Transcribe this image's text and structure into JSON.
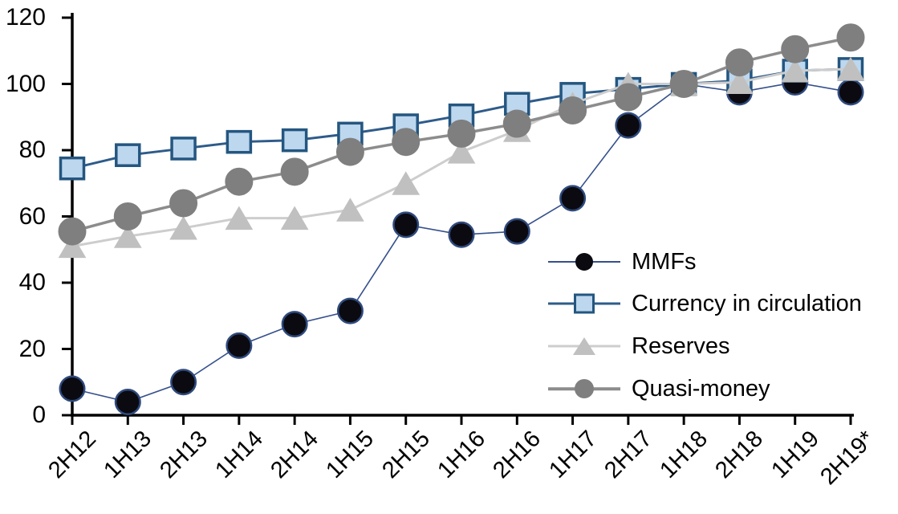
{
  "chart_data": {
    "type": "line",
    "title": "",
    "xlabel": "",
    "ylabel": "",
    "categories": [
      "2H12",
      "1H13",
      "2H13",
      "1H14",
      "2H14",
      "1H15",
      "2H15",
      "1H16",
      "2H16",
      "1H17",
      "2H17",
      "1H18",
      "2H18",
      "1H19",
      "2H19*"
    ],
    "series": [
      {
        "name": "MMFs",
        "marker": "circle",
        "marker_size": 33,
        "fill": "#0A0A10",
        "stroke": "#2F4A7D",
        "stroke_width": 2.5,
        "line_color": "#35508C",
        "line_width": 1.6,
        "values": [
          8,
          4,
          10,
          21,
          27.5,
          31.5,
          57.5,
          54.5,
          55.5,
          65.5,
          87.5,
          100,
          97.5,
          100.5,
          97.5
        ]
      },
      {
        "name": "Currency in circulation",
        "marker": "square",
        "marker_size": 29,
        "fill": "#BDD7EE",
        "stroke": "#245680",
        "stroke_width": 3.5,
        "line_color": "#2E5B8A",
        "line_width": 3,
        "values": [
          74.5,
          78.5,
          80.5,
          82.5,
          83,
          85,
          87.5,
          90.5,
          94,
          97,
          98.5,
          100,
          101,
          104,
          104.5
        ]
      },
      {
        "name": "Reserves",
        "marker": "triangle",
        "marker_size": 33,
        "fill": "#C0C0C0",
        "stroke": "#C0C0C0",
        "stroke_width": 1,
        "line_color": "#CDCDCD",
        "line_width": 3,
        "values": [
          51,
          54,
          56.5,
          59.5,
          59.5,
          62,
          70,
          79.5,
          86,
          94,
          100,
          100,
          100.5,
          104,
          104.5
        ]
      },
      {
        "name": "Quasi-money",
        "marker": "circle",
        "marker_size": 35,
        "fill": "#7F7F7F",
        "stroke": "#7F7F7F",
        "stroke_width": 1,
        "line_color": "#8C8C8C",
        "line_width": 3.5,
        "values": [
          55.5,
          60,
          64,
          70.5,
          73.5,
          79.5,
          82.5,
          85,
          88,
          92,
          96,
          100,
          106.5,
          110.5,
          114
        ]
      }
    ],
    "ylim": [
      0,
      120
    ],
    "y_tick_step": 20,
    "y_tick_labels": [
      "0",
      "20",
      "40",
      "60",
      "80",
      "100",
      "120"
    ],
    "grid": false,
    "legend_position": "center-right",
    "axis_color": "#000000",
    "background": "#FFFFFF"
  }
}
